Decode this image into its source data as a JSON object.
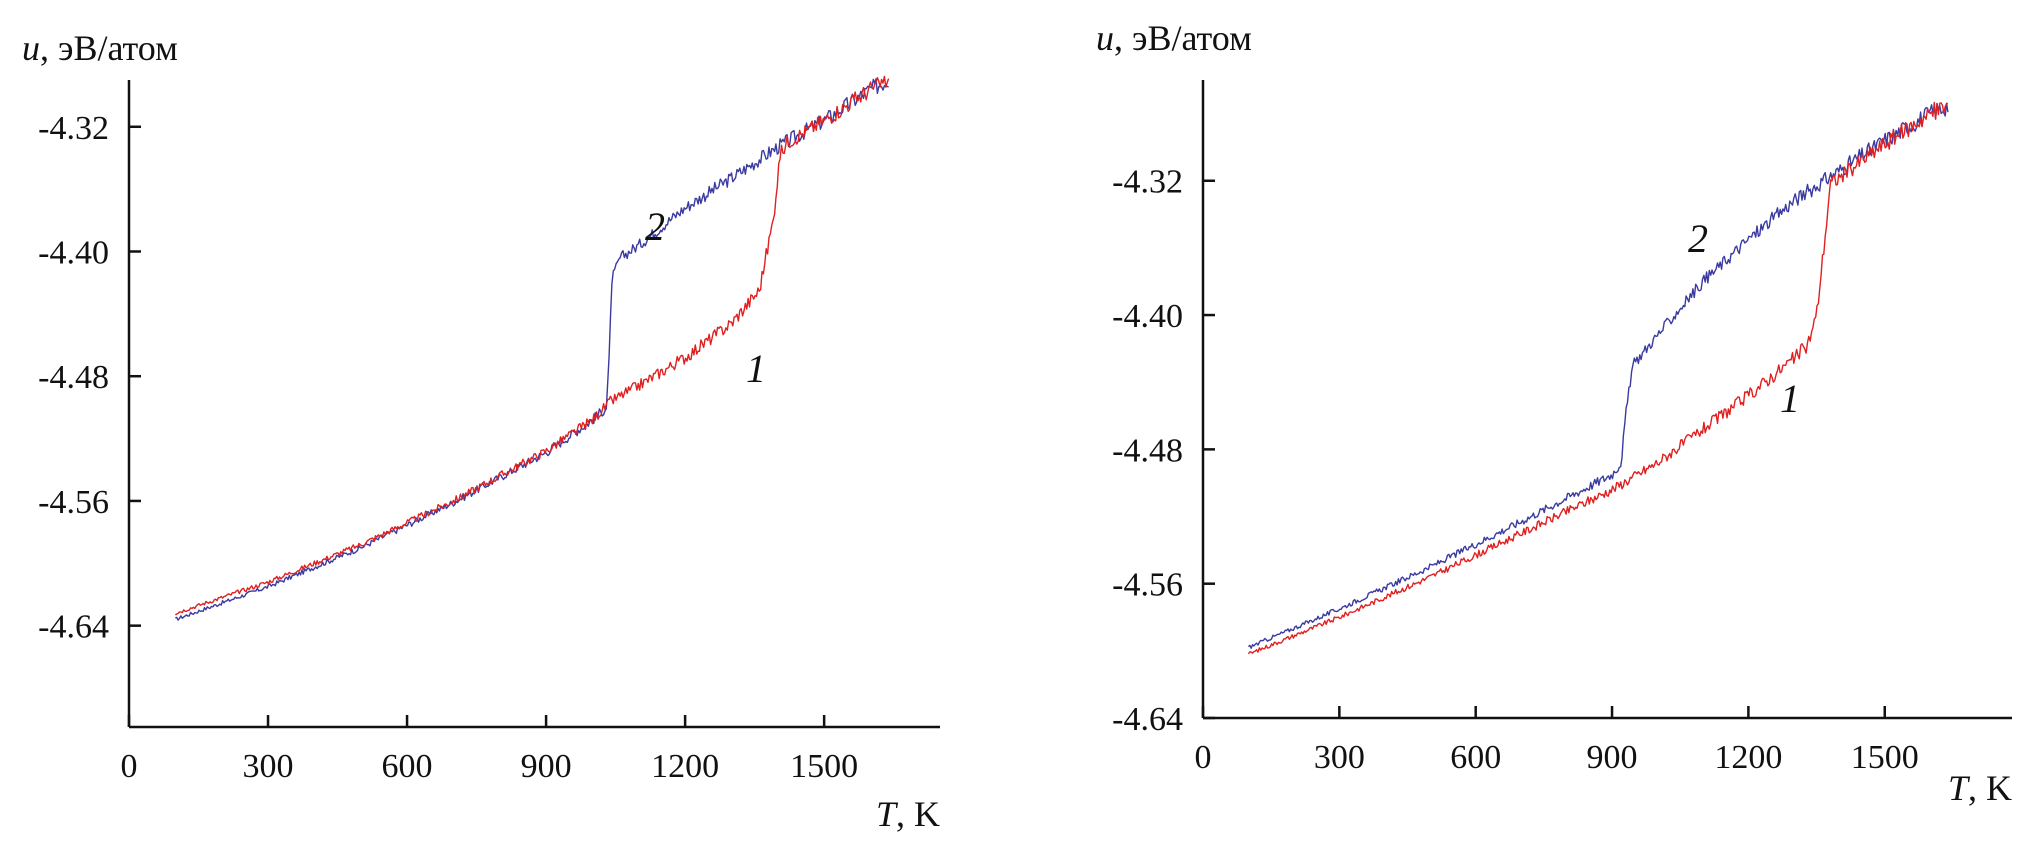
{
  "figure": {
    "panels": 2
  },
  "chart_data": [
    {
      "type": "line",
      "panel": "left",
      "xlabel_var": "T",
      "xlabel_unit": ", K",
      "ylabel_var": "u",
      "ylabel_unit": ", эВ/атом",
      "xlim": [
        0,
        1750
      ],
      "ylim": [
        -4.705,
        -4.29
      ],
      "xticks": [
        0,
        300,
        600,
        900,
        1200,
        1500
      ],
      "xtick_labels": [
        "0",
        "300",
        "600",
        "900",
        "1200",
        "1500"
      ],
      "yticks": [
        -4.64,
        -4.56,
        -4.48,
        -4.4,
        -4.32
      ],
      "ytick_labels": [
        "-4.64",
        "-4.56",
        "-4.48",
        "-4.40",
        "-4.32"
      ],
      "series": [
        {
          "name": "1",
          "color": "#e02020",
          "points": [
            [
              100,
              -4.632
            ],
            [
              300,
              -4.612
            ],
            [
              500,
              -4.588
            ],
            [
              700,
              -4.56
            ],
            [
              900,
              -4.528
            ],
            [
              1000,
              -4.508
            ],
            [
              1040,
              -4.496
            ],
            [
              1100,
              -4.486
            ],
            [
              1200,
              -4.468
            ],
            [
              1300,
              -4.446
            ],
            [
              1360,
              -4.425
            ],
            [
              1390,
              -4.38
            ],
            [
              1405,
              -4.338
            ],
            [
              1420,
              -4.33
            ],
            [
              1500,
              -4.316
            ],
            [
              1600,
              -4.296
            ],
            [
              1640,
              -4.29
            ]
          ]
        },
        {
          "name": "2",
          "color": "#3a3aa0",
          "points": [
            [
              100,
              -4.636
            ],
            [
              300,
              -4.615
            ],
            [
              500,
              -4.59
            ],
            [
              700,
              -4.561
            ],
            [
              900,
              -4.529
            ],
            [
              1000,
              -4.508
            ],
            [
              1030,
              -4.5
            ],
            [
              1036,
              -4.47
            ],
            [
              1042,
              -4.418
            ],
            [
              1060,
              -4.404
            ],
            [
              1100,
              -4.396
            ],
            [
              1200,
              -4.372
            ],
            [
              1300,
              -4.353
            ],
            [
              1400,
              -4.333
            ],
            [
              1500,
              -4.316
            ],
            [
              1600,
              -4.296
            ],
            [
              1640,
              -4.29
            ]
          ]
        }
      ],
      "curve_labels": [
        "2",
        "1"
      ]
    },
    {
      "type": "line",
      "panel": "right",
      "xlabel_var": "T",
      "xlabel_unit": ", K",
      "ylabel_var": "u",
      "ylabel_unit": ", эВ/атом",
      "xlim": [
        0,
        1780
      ],
      "ylim": [
        -4.64,
        -4.26
      ],
      "xticks": [
        0,
        300,
        600,
        900,
        1200,
        1500
      ],
      "xtick_labels": [
        "0",
        "300",
        "600",
        "900",
        "1200",
        "1500"
      ],
      "yticks": [
        -4.64,
        -4.56,
        -4.48,
        -4.4,
        -4.32
      ],
      "ytick_labels": [
        "-4.64",
        "-4.56",
        "-4.48",
        "-4.40",
        "-4.32"
      ],
      "series": [
        {
          "name": "1",
          "color": "#e02020",
          "points": [
            [
              100,
              -4.602
            ],
            [
              300,
              -4.58
            ],
            [
              500,
              -4.556
            ],
            [
              700,
              -4.53
            ],
            [
              900,
              -4.504
            ],
            [
              1000,
              -4.488
            ],
            [
              1100,
              -4.468
            ],
            [
              1200,
              -4.448
            ],
            [
              1300,
              -4.426
            ],
            [
              1330,
              -4.418
            ],
            [
              1350,
              -4.4
            ],
            [
              1370,
              -4.35
            ],
            [
              1380,
              -4.322
            ],
            [
              1400,
              -4.318
            ],
            [
              1500,
              -4.298
            ],
            [
              1600,
              -4.28
            ],
            [
              1640,
              -4.275
            ]
          ]
        },
        {
          "name": "2",
          "color": "#3a3aa0",
          "points": [
            [
              100,
              -4.598
            ],
            [
              300,
              -4.575
            ],
            [
              500,
              -4.55
            ],
            [
              700,
              -4.523
            ],
            [
              900,
              -4.495
            ],
            [
              920,
              -4.488
            ],
            [
              930,
              -4.46
            ],
            [
              945,
              -4.43
            ],
            [
              1000,
              -4.412
            ],
            [
              1100,
              -4.38
            ],
            [
              1200,
              -4.355
            ],
            [
              1300,
              -4.332
            ],
            [
              1400,
              -4.314
            ],
            [
              1500,
              -4.296
            ],
            [
              1600,
              -4.28
            ],
            [
              1640,
              -4.275
            ]
          ]
        }
      ],
      "curve_labels": [
        "2",
        "1"
      ]
    }
  ]
}
